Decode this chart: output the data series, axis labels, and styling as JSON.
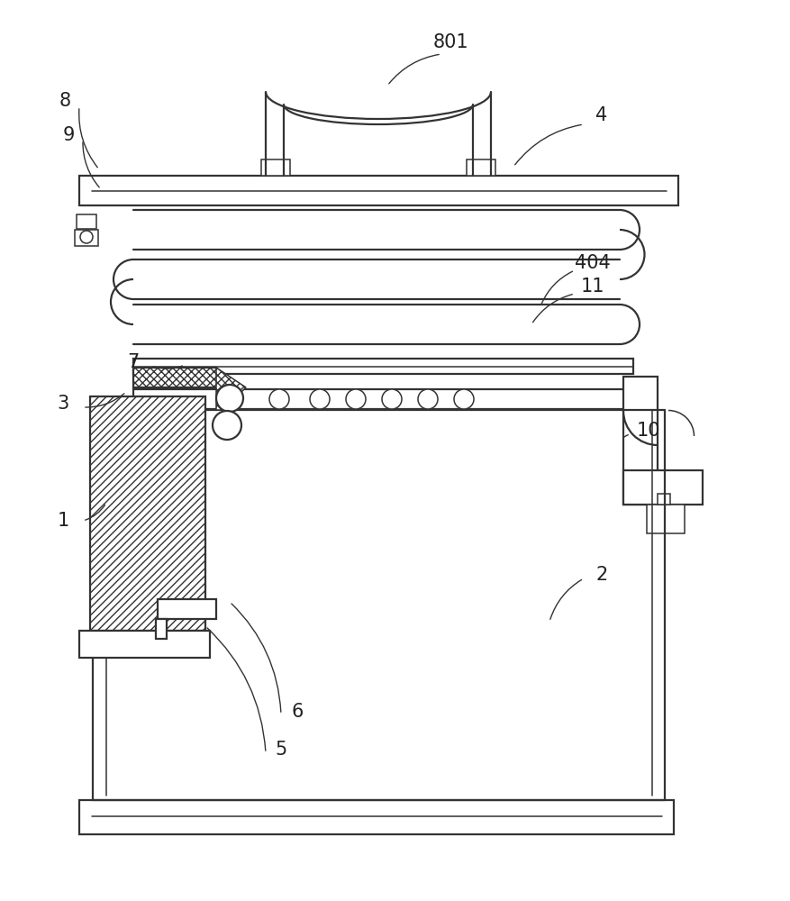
{
  "bg_color": "#ffffff",
  "line_color": "#333333",
  "figsize": [
    8.77,
    10.0
  ],
  "dpi": 100,
  "label_fs": 15,
  "label_color": "#222222",
  "labels_config": [
    [
      "801",
      500,
      47,
      490,
      60,
      430,
      95
    ],
    [
      "8",
      72,
      112,
      88,
      118,
      110,
      188
    ],
    [
      "9",
      76,
      150,
      92,
      155,
      112,
      210
    ],
    [
      "4",
      668,
      128,
      648,
      138,
      570,
      185
    ],
    [
      "404",
      658,
      292,
      638,
      300,
      600,
      340
    ],
    [
      "11",
      658,
      318,
      638,
      326,
      590,
      360
    ],
    [
      "7",
      148,
      402,
      168,
      406,
      205,
      405
    ],
    [
      "3",
      70,
      448,
      92,
      452,
      140,
      435
    ],
    [
      "10",
      720,
      478,
      700,
      482,
      690,
      488
    ],
    [
      "1",
      70,
      578,
      92,
      578,
      118,
      558
    ],
    [
      "2",
      668,
      638,
      648,
      642,
      610,
      690
    ],
    [
      "6",
      330,
      790,
      312,
      793,
      255,
      668
    ],
    [
      "5",
      312,
      832,
      295,
      836,
      228,
      695
    ]
  ]
}
